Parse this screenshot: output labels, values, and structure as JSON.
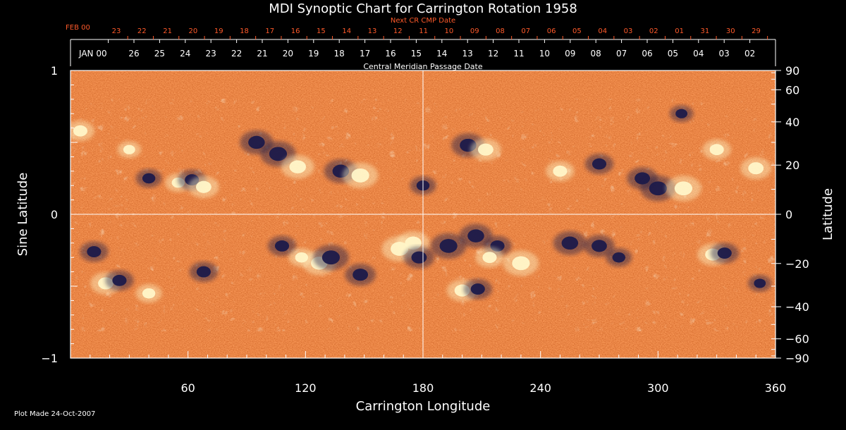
{
  "title": "MDI Synoptic Chart for Carrington Rotation 1958",
  "footer_text": "Plot Made 24-Oct-2007",
  "colors": {
    "background": "#000000",
    "axis": "#ffffff",
    "next_cr_label": "#ff5a2a",
    "map_base": "#e8511e",
    "positive_field": "#fff6c8",
    "negative_field": "#1c1a4a"
  },
  "chart_data": {
    "type": "heatmap",
    "title": "MDI Synoptic Chart for Carrington Rotation 1958",
    "xlabel": "Carrington Longitude",
    "ylabel": "Sine Latitude",
    "y2label": "Latitude",
    "xlim": [
      0,
      360
    ],
    "ylim": [
      -1,
      1
    ],
    "grid": "center crosshair at longitude 180 and sine latitude 0",
    "x_ticks": [
      "60",
      "120",
      "180",
      "240",
      "300",
      "360"
    ],
    "y_ticks": [
      {
        "value": 1,
        "label": "1"
      },
      {
        "value": 0,
        "label": "0"
      },
      {
        "value": -1,
        "label": "−1"
      }
    ],
    "latitude_ticks": [
      {
        "lat": 90,
        "label": "90"
      },
      {
        "lat": 60,
        "label": "60"
      },
      {
        "lat": 40,
        "label": "40"
      },
      {
        "lat": 20,
        "label": "20"
      },
      {
        "lat": 0,
        "label": "0"
      },
      {
        "lat": -20,
        "label": "−20"
      },
      {
        "lat": -40,
        "label": "−40"
      },
      {
        "lat": -60,
        "label": "−60"
      },
      {
        "lat": -90,
        "label": "−90"
      }
    ],
    "top_axis_title": "Central Meridian Passage Date",
    "next_cr_axis_title": "Next CR CMP Date",
    "cmp_first_label": "JAN 00",
    "cmp_dates": [
      "26",
      "25",
      "24",
      "23",
      "22",
      "21",
      "20",
      "19",
      "18",
      "17",
      "16",
      "15",
      "14",
      "13",
      "12",
      "11",
      "10",
      "09",
      "08",
      "07",
      "06",
      "05",
      "04",
      "03",
      "02"
    ],
    "next_cr_first_label": "FEB 00",
    "next_cr_dates": [
      "23",
      "22",
      "21",
      "20",
      "19",
      "18",
      "17",
      "16",
      "15",
      "14",
      "13",
      "12",
      "11",
      "10",
      "09",
      "08",
      "07",
      "06",
      "05",
      "04",
      "03",
      "02",
      "01",
      "31",
      "30",
      "29"
    ],
    "regions": [
      {
        "polarity": "positive",
        "lon": 5,
        "sinlat": 0.58,
        "strength": 0.7
      },
      {
        "polarity": "positive",
        "lon": 30,
        "sinlat": 0.45,
        "strength": 0.5
      },
      {
        "polarity": "negative",
        "lon": 40,
        "sinlat": 0.25,
        "strength": 0.6
      },
      {
        "polarity": "positive",
        "lon": 55,
        "sinlat": 0.22,
        "strength": 0.6
      },
      {
        "polarity": "negative",
        "lon": 62,
        "sinlat": 0.24,
        "strength": 0.7
      },
      {
        "polarity": "positive",
        "lon": 68,
        "sinlat": 0.19,
        "strength": 0.8
      },
      {
        "polarity": "negative",
        "lon": 95,
        "sinlat": 0.5,
        "strength": 0.9
      },
      {
        "polarity": "negative",
        "lon": 106,
        "sinlat": 0.42,
        "strength": 1.0
      },
      {
        "polarity": "positive",
        "lon": 116,
        "sinlat": 0.33,
        "strength": 0.9
      },
      {
        "polarity": "negative",
        "lon": 138,
        "sinlat": 0.3,
        "strength": 0.9
      },
      {
        "polarity": "positive",
        "lon": 148,
        "sinlat": 0.27,
        "strength": 1.0
      },
      {
        "polarity": "negative",
        "lon": 180,
        "sinlat": 0.2,
        "strength": 0.6
      },
      {
        "polarity": "negative",
        "lon": 203,
        "sinlat": 0.48,
        "strength": 0.9
      },
      {
        "polarity": "positive",
        "lon": 212,
        "sinlat": 0.45,
        "strength": 0.8
      },
      {
        "polarity": "positive",
        "lon": 250,
        "sinlat": 0.3,
        "strength": 0.7
      },
      {
        "polarity": "negative",
        "lon": 270,
        "sinlat": 0.35,
        "strength": 0.7
      },
      {
        "polarity": "negative",
        "lon": 292,
        "sinlat": 0.25,
        "strength": 0.8
      },
      {
        "polarity": "negative",
        "lon": 300,
        "sinlat": 0.18,
        "strength": 1.0
      },
      {
        "polarity": "positive",
        "lon": 313,
        "sinlat": 0.18,
        "strength": 1.0
      },
      {
        "polarity": "positive",
        "lon": 330,
        "sinlat": 0.45,
        "strength": 0.7
      },
      {
        "polarity": "positive",
        "lon": 350,
        "sinlat": 0.32,
        "strength": 0.8
      },
      {
        "polarity": "negative",
        "lon": 312,
        "sinlat": 0.7,
        "strength": 0.5
      },
      {
        "polarity": "negative",
        "lon": 12,
        "sinlat": -0.26,
        "strength": 0.7
      },
      {
        "polarity": "positive",
        "lon": 18,
        "sinlat": -0.48,
        "strength": 0.8
      },
      {
        "polarity": "negative",
        "lon": 25,
        "sinlat": -0.46,
        "strength": 0.7
      },
      {
        "polarity": "positive",
        "lon": 40,
        "sinlat": -0.55,
        "strength": 0.6
      },
      {
        "polarity": "negative",
        "lon": 68,
        "sinlat": -0.4,
        "strength": 0.7
      },
      {
        "polarity": "negative",
        "lon": 108,
        "sinlat": -0.22,
        "strength": 0.7
      },
      {
        "polarity": "positive",
        "lon": 118,
        "sinlat": -0.3,
        "strength": 0.6
      },
      {
        "polarity": "positive",
        "lon": 127,
        "sinlat": -0.34,
        "strength": 0.9
      },
      {
        "polarity": "negative",
        "lon": 133,
        "sinlat": -0.3,
        "strength": 1.0
      },
      {
        "polarity": "negative",
        "lon": 148,
        "sinlat": -0.42,
        "strength": 0.8
      },
      {
        "polarity": "positive",
        "lon": 168,
        "sinlat": -0.24,
        "strength": 1.0
      },
      {
        "polarity": "positive",
        "lon": 175,
        "sinlat": -0.2,
        "strength": 0.9
      },
      {
        "polarity": "negative",
        "lon": 178,
        "sinlat": -0.3,
        "strength": 0.8
      },
      {
        "polarity": "negative",
        "lon": 193,
        "sinlat": -0.22,
        "strength": 1.0
      },
      {
        "polarity": "negative",
        "lon": 207,
        "sinlat": -0.15,
        "strength": 0.9
      },
      {
        "polarity": "negative",
        "lon": 218,
        "sinlat": -0.22,
        "strength": 0.7
      },
      {
        "polarity": "positive",
        "lon": 230,
        "sinlat": -0.34,
        "strength": 1.0
      },
      {
        "polarity": "positive",
        "lon": 214,
        "sinlat": -0.3,
        "strength": 0.7
      },
      {
        "polarity": "negative",
        "lon": 255,
        "sinlat": -0.2,
        "strength": 0.9
      },
      {
        "polarity": "negative",
        "lon": 270,
        "sinlat": -0.22,
        "strength": 0.8
      },
      {
        "polarity": "positive",
        "lon": 200,
        "sinlat": -0.53,
        "strength": 0.8
      },
      {
        "polarity": "negative",
        "lon": 208,
        "sinlat": -0.52,
        "strength": 0.7
      },
      {
        "polarity": "negative",
        "lon": 280,
        "sinlat": -0.3,
        "strength": 0.6
      },
      {
        "polarity": "positive",
        "lon": 328,
        "sinlat": -0.28,
        "strength": 0.8
      },
      {
        "polarity": "negative",
        "lon": 334,
        "sinlat": -0.27,
        "strength": 0.7
      },
      {
        "polarity": "negative",
        "lon": 352,
        "sinlat": -0.48,
        "strength": 0.5
      }
    ]
  }
}
